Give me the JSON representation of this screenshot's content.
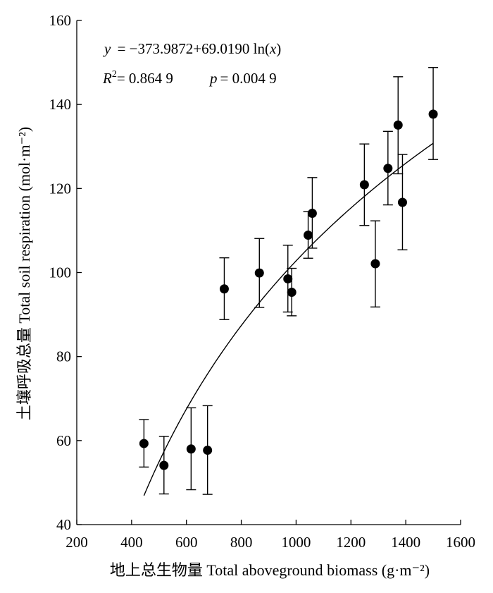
{
  "chart_data": {
    "type": "scatter",
    "title": "",
    "xlabel": "地上总生物量 Total aboveground biomass (g·m⁻²)",
    "ylabel": "土壤呼吸总量 Total soil respiration (mol·m⁻²)",
    "xlim": [
      200,
      1600
    ],
    "ylim": [
      40,
      160
    ],
    "xticks": [
      200,
      400,
      600,
      800,
      1000,
      1200,
      1400,
      1600
    ],
    "yticks": [
      40,
      60,
      80,
      100,
      120,
      140,
      160
    ],
    "xtick_labels": [
      "200",
      "400",
      "600",
      "800",
      "1000",
      "1200",
      "1400",
      "1600"
    ],
    "ytick_labels": [
      "40",
      "60",
      "80",
      "100",
      "120",
      "140",
      "160"
    ],
    "grid": false,
    "points": [
      {
        "x": 445,
        "y": 59.3,
        "lo": 53.7,
        "hi": 65.0
      },
      {
        "x": 518,
        "y": 54.1,
        "lo": 47.3,
        "hi": 61.0
      },
      {
        "x": 617,
        "y": 58.0,
        "lo": 48.3,
        "hi": 67.8
      },
      {
        "x": 677,
        "y": 57.7,
        "lo": 47.2,
        "hi": 68.3
      },
      {
        "x": 738,
        "y": 96.1,
        "lo": 88.8,
        "hi": 103.5
      },
      {
        "x": 866,
        "y": 99.9,
        "lo": 91.7,
        "hi": 108.1
      },
      {
        "x": 970,
        "y": 98.5,
        "lo": 90.6,
        "hi": 106.5
      },
      {
        "x": 984,
        "y": 95.3,
        "lo": 89.7,
        "hi": 101.0
      },
      {
        "x": 1044,
        "y": 108.9,
        "lo": 103.4,
        "hi": 114.5
      },
      {
        "x": 1059,
        "y": 114.1,
        "lo": 105.8,
        "hi": 122.6
      },
      {
        "x": 1249,
        "y": 120.9,
        "lo": 111.2,
        "hi": 130.6
      },
      {
        "x": 1289,
        "y": 102.1,
        "lo": 91.8,
        "hi": 112.3
      },
      {
        "x": 1335,
        "y": 124.8,
        "lo": 116.1,
        "hi": 133.6
      },
      {
        "x": 1372,
        "y": 135.1,
        "lo": 123.5,
        "hi": 146.6
      },
      {
        "x": 1388,
        "y": 116.7,
        "lo": 105.4,
        "hi": 128.1
      },
      {
        "x": 1500,
        "y": 137.7,
        "lo": 126.9,
        "hi": 148.8
      }
    ],
    "fit": {
      "intercept": -373.9872,
      "slope": 69.019,
      "x_range": [
        445,
        1500
      ]
    },
    "annotations": {
      "y_var": "y",
      "eq_rhs": "= −373.9872+69.0190 ln(",
      "eq_x": "x",
      "eq_close": ")",
      "r_var": "R",
      "r_sup": "2",
      "r_val": "= 0.864 9",
      "p_var": "p",
      "p_val": "= 0.004 9"
    }
  }
}
